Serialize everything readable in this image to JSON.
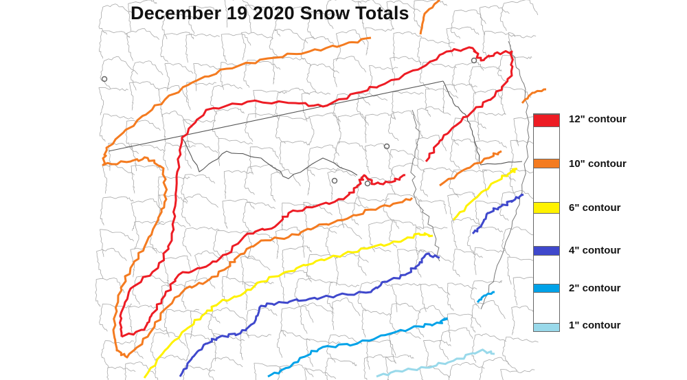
{
  "title": "December 19 2020 Snow Totals",
  "legend": [
    {
      "label": "12\" contour",
      "color": "#ed1c24"
    },
    {
      "label": "10\" contour",
      "color": "#f47b20"
    },
    {
      "label": "6\" contour",
      "color": "#fff200"
    },
    {
      "label": "4\" contour",
      "color": "#3f48cc"
    },
    {
      "label": "2\" contour",
      "color": "#00a2e8"
    },
    {
      "label": "1\" contour",
      "color": "#99d9ea"
    }
  ],
  "map": {
    "boundary_color": "#888888",
    "background": "#ffffff"
  }
}
